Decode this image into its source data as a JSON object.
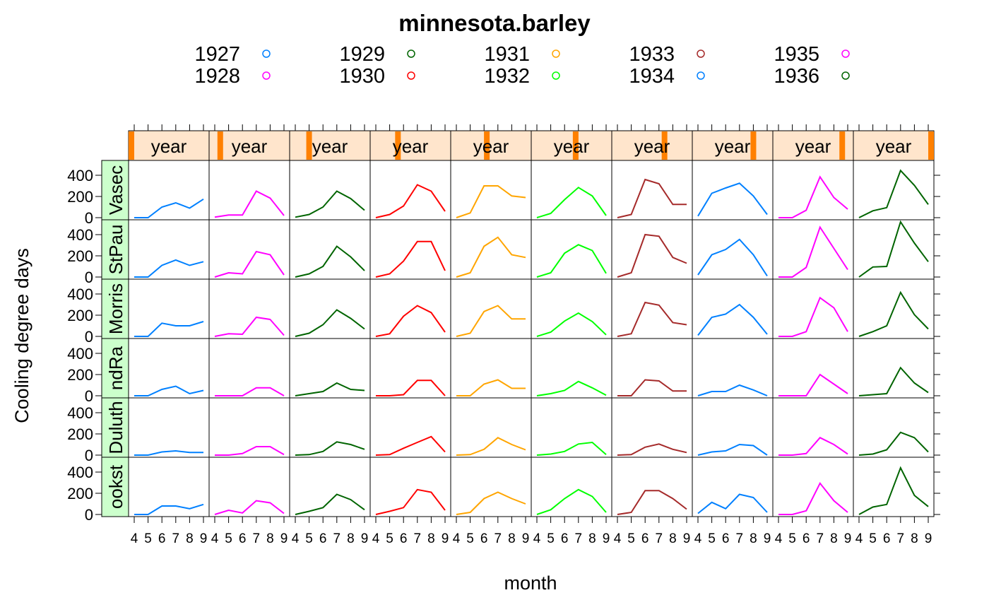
{
  "chart_data": {
    "type": "line",
    "title": "minnesota.barley",
    "xlabel": "month",
    "ylabel": "Cooling degree days",
    "column_strip_label": "year",
    "row_strip_labels": [
      "Vasec",
      "StPaul",
      "Morris",
      "GrandRapids",
      "Duluth",
      "Crookston"
    ],
    "row_strip_visible": [
      "Vasec",
      "StPau",
      "Morris",
      "ndRa",
      "Duluth",
      "ookst"
    ],
    "years": [
      "1927",
      "1928",
      "1929",
      "1930",
      "1931",
      "1932",
      "1933",
      "1934",
      "1935",
      "1936"
    ],
    "colors": [
      "#0080ff",
      "#ff00ff",
      "#006400",
      "#ff0000",
      "#ffa500",
      "#00ff00",
      "#a52a2a",
      "#0080ff",
      "#ff00ff",
      "#006400"
    ],
    "x": [
      4,
      5,
      6,
      7,
      8,
      9
    ],
    "x_tick_labels": [
      "4",
      "5",
      "6",
      "7",
      "8",
      "9"
    ],
    "x_tick_text": [
      "4 5 6 7 8 94 5 6 7 8 94 5 6 7 8 94 5 6 7 8 94 5 6 7 8 94 5 6 7 8 94 5 6 7 8 94 5 6 7 8 94 5 6 7 8 94 5 6 7 8 9"
    ],
    "y_ticks": [
      0,
      200,
      400
    ],
    "y_tick_labels": [
      "0",
      "200",
      "400"
    ],
    "ylim": [
      0,
      520
    ],
    "values": {
      "Vasec": [
        [
          0,
          0,
          100,
          140,
          90,
          175
        ],
        [
          5,
          25,
          25,
          250,
          185,
          20
        ],
        [
          5,
          30,
          100,
          250,
          180,
          70
        ],
        [
          0,
          30,
          110,
          310,
          250,
          60
        ],
        [
          0,
          45,
          300,
          300,
          205,
          190
        ],
        [
          0,
          40,
          170,
          285,
          205,
          20
        ],
        [
          0,
          30,
          360,
          320,
          125,
          125
        ],
        [
          15,
          230,
          280,
          325,
          205,
          30
        ],
        [
          0,
          0,
          70,
          385,
          190,
          80
        ],
        [
          0,
          65,
          95,
          445,
          305,
          125
        ]
      ],
      "StPaul": [
        [
          0,
          0,
          110,
          160,
          110,
          145
        ],
        [
          0,
          40,
          30,
          240,
          210,
          20
        ],
        [
          0,
          30,
          100,
          290,
          190,
          60
        ],
        [
          0,
          30,
          150,
          335,
          335,
          60
        ],
        [
          0,
          40,
          290,
          375,
          210,
          185
        ],
        [
          0,
          40,
          225,
          305,
          250,
          35
        ],
        [
          0,
          40,
          400,
          385,
          185,
          130
        ],
        [
          20,
          210,
          260,
          355,
          210,
          10
        ],
        [
          0,
          0,
          90,
          470,
          270,
          70
        ],
        [
          0,
          95,
          100,
          520,
          320,
          145
        ]
      ],
      "Morris": [
        [
          0,
          0,
          125,
          100,
          100,
          140
        ],
        [
          0,
          25,
          20,
          180,
          160,
          10
        ],
        [
          0,
          30,
          110,
          250,
          170,
          70
        ],
        [
          0,
          25,
          190,
          290,
          225,
          40
        ],
        [
          0,
          30,
          235,
          290,
          165,
          165
        ],
        [
          0,
          40,
          145,
          220,
          140,
          15
        ],
        [
          0,
          25,
          320,
          295,
          130,
          110
        ],
        [
          10,
          180,
          210,
          300,
          180,
          20
        ],
        [
          0,
          0,
          45,
          365,
          270,
          45
        ],
        [
          0,
          45,
          100,
          415,
          205,
          70
        ]
      ],
      "GrandRapids": [
        [
          0,
          0,
          60,
          90,
          20,
          50
        ],
        [
          0,
          0,
          0,
          75,
          75,
          0
        ],
        [
          0,
          20,
          40,
          120,
          60,
          50
        ],
        [
          0,
          0,
          10,
          145,
          145,
          0
        ],
        [
          0,
          0,
          110,
          150,
          70,
          70
        ],
        [
          0,
          20,
          50,
          135,
          75,
          5
        ],
        [
          0,
          0,
          150,
          140,
          45,
          45
        ],
        [
          0,
          40,
          40,
          100,
          55,
          0
        ],
        [
          0,
          0,
          0,
          200,
          110,
          20
        ],
        [
          0,
          10,
          20,
          265,
          120,
          30
        ]
      ],
      "Duluth": [
        [
          0,
          0,
          30,
          40,
          25,
          25
        ],
        [
          0,
          0,
          15,
          80,
          80,
          5
        ],
        [
          0,
          5,
          35,
          125,
          100,
          55
        ],
        [
          0,
          5,
          65,
          120,
          175,
          30
        ],
        [
          0,
          5,
          55,
          165,
          100,
          50
        ],
        [
          0,
          10,
          35,
          105,
          120,
          5
        ],
        [
          0,
          5,
          75,
          105,
          55,
          25
        ],
        [
          0,
          30,
          40,
          100,
          90,
          0
        ],
        [
          0,
          0,
          15,
          165,
          100,
          10
        ],
        [
          0,
          10,
          50,
          215,
          165,
          30
        ]
      ],
      "Crookston": [
        [
          0,
          0,
          80,
          80,
          55,
          95
        ],
        [
          0,
          40,
          15,
          130,
          110,
          10
        ],
        [
          0,
          30,
          65,
          190,
          140,
          45
        ],
        [
          0,
          30,
          65,
          235,
          210,
          40
        ],
        [
          0,
          20,
          150,
          210,
          150,
          100
        ],
        [
          0,
          45,
          150,
          235,
          170,
          20
        ],
        [
          0,
          20,
          225,
          225,
          150,
          50
        ],
        [
          10,
          115,
          55,
          190,
          160,
          20
        ],
        [
          0,
          0,
          35,
          295,
          130,
          20
        ],
        [
          0,
          70,
          95,
          440,
          180,
          75
        ]
      ]
    },
    "legend": {
      "placement": "top",
      "columns": 5,
      "marker": "open-circle",
      "entries": [
        {
          "name": "1927",
          "color": "#0080ff"
        },
        {
          "name": "1928",
          "color": "#ff00ff"
        },
        {
          "name": "1929",
          "color": "#006400"
        },
        {
          "name": "1930",
          "color": "#ff0000"
        },
        {
          "name": "1931",
          "color": "#ffa500"
        },
        {
          "name": "1932",
          "color": "#00ff00"
        },
        {
          "name": "1933",
          "color": "#a52a2a"
        },
        {
          "name": "1934",
          "color": "#0080ff"
        },
        {
          "name": "1935",
          "color": "#ff00ff"
        },
        {
          "name": "1936",
          "color": "#006400"
        }
      ]
    },
    "strip_colors": {
      "column": "#ffe5cc",
      "column_indicator": "#ff8000",
      "row": "#ccffcc"
    },
    "grid": false
  }
}
